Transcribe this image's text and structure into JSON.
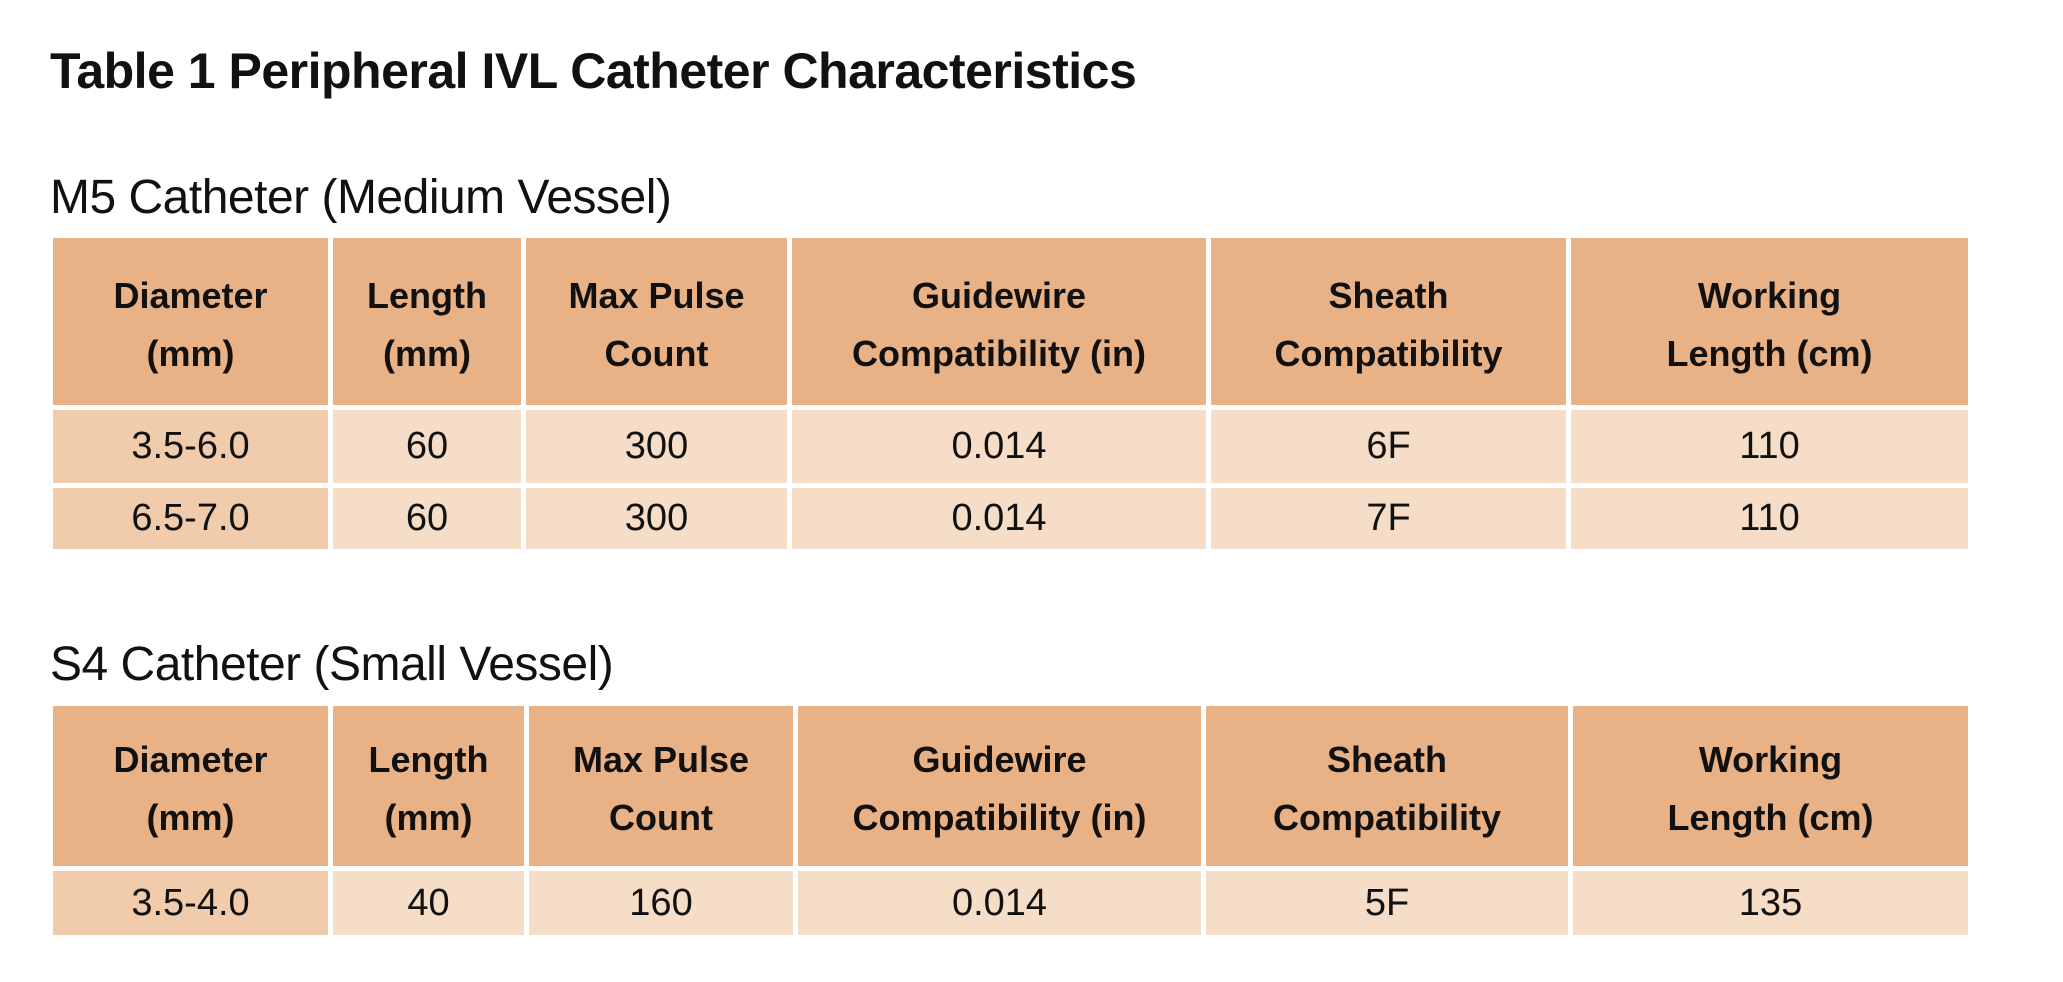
{
  "title": {
    "label": "Table 1",
    "text": "Peripheral IVL Catheter Characteristics"
  },
  "colors": {
    "header_bg": "#E8B186",
    "first_col_bg": "#F0CCAC",
    "body_bg": "#F5DDC7"
  },
  "tables": [
    {
      "caption": "M5 Catheter (Medium Vessel)",
      "headers": [
        [
          "Diameter",
          "(mm)"
        ],
        [
          "Length",
          "(mm)"
        ],
        [
          "Max Pulse",
          "Count"
        ],
        [
          "Guidewire",
          "Compatibility (in)"
        ],
        [
          "Sheath",
          "Compatibility"
        ],
        [
          "Working",
          "Length (cm)"
        ]
      ],
      "rows": [
        [
          "3.5-6.0",
          "60",
          "300",
          "0.014",
          "6F",
          "110"
        ],
        [
          "6.5-7.0",
          "60",
          "300",
          "0.014",
          "7F",
          "110"
        ]
      ]
    },
    {
      "caption": "S4 Catheter (Small Vessel)",
      "headers": [
        [
          "Diameter",
          "(mm)"
        ],
        [
          "Length",
          "(mm)"
        ],
        [
          "Max Pulse",
          "Count"
        ],
        [
          "Guidewire",
          "Compatibility (in)"
        ],
        [
          "Sheath",
          "Compatibility"
        ],
        [
          "Working",
          "Length (cm)"
        ]
      ],
      "rows": [
        [
          "3.5-4.0",
          "40",
          "160",
          "0.014",
          "5F",
          "135"
        ]
      ]
    }
  ]
}
